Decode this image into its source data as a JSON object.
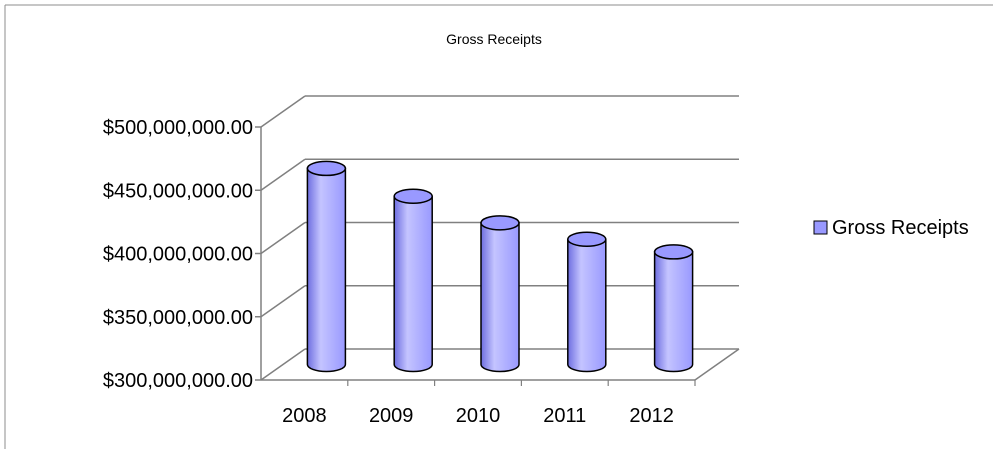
{
  "chart_data": {
    "type": "bar",
    "title": "Gross Receipts",
    "categories": [
      "2008",
      "2009",
      "2010",
      "2011",
      "2012"
    ],
    "series": [
      {
        "name": "Gross Receipts",
        "values": [
          455000000,
          433000000,
          412000000,
          399000000,
          389000000
        ]
      }
    ],
    "ylim": [
      300000000,
      500000000
    ],
    "yticks": [
      {
        "value": 300000000,
        "label": "$300,000,000.00"
      },
      {
        "value": 350000000,
        "label": "$350,000,000.00"
      },
      {
        "value": 400000000,
        "label": "$400,000,000.00"
      },
      {
        "value": 450000000,
        "label": "$450,000,000.00"
      },
      {
        "value": 500000000,
        "label": "$500,000,000.00"
      }
    ],
    "grid": true,
    "legend_position": "right",
    "style": "3d-cylinder",
    "colors": {
      "bar_fill": "#9999ff",
      "bar_light": "#c4c4ff",
      "bar_dark": "#6e6ee0",
      "bar_stroke": "#000000",
      "grid": "#808080"
    }
  }
}
